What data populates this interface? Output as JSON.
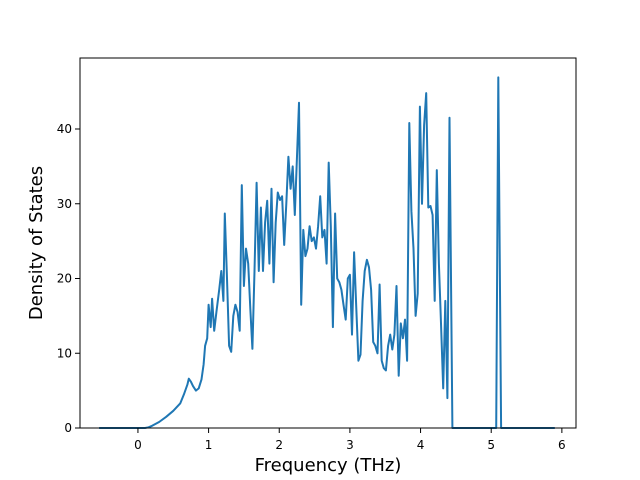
{
  "chart_data": {
    "type": "line",
    "title": "",
    "xlabel": "Frequency (THz)",
    "ylabel": "Density of States",
    "xlim": [
      -0.82,
      6.2
    ],
    "ylim": [
      0,
      49.5
    ],
    "xticks": [
      0,
      1,
      2,
      3,
      4,
      5,
      6
    ],
    "yticks": [
      0,
      10,
      20,
      30,
      40
    ],
    "grid": false,
    "legend": "none",
    "series": [
      {
        "color": "#1f77b4",
        "points": [
          [
            -0.55,
            0
          ],
          [
            -0.3,
            0
          ],
          [
            0.0,
            0
          ],
          [
            0.1,
            0
          ],
          [
            0.15,
            0.1
          ],
          [
            0.2,
            0.3
          ],
          [
            0.3,
            0.8
          ],
          [
            0.4,
            1.5
          ],
          [
            0.5,
            2.3
          ],
          [
            0.6,
            3.3
          ],
          [
            0.65,
            4.5
          ],
          [
            0.7,
            5.8
          ],
          [
            0.72,
            6.6
          ],
          [
            0.75,
            6.2
          ],
          [
            0.78,
            5.6
          ],
          [
            0.82,
            5.0
          ],
          [
            0.86,
            5.3
          ],
          [
            0.9,
            6.5
          ],
          [
            0.93,
            8.5
          ],
          [
            0.95,
            11.0
          ],
          [
            0.98,
            12.0
          ],
          [
            1.0,
            16.5
          ],
          [
            1.03,
            13.5
          ],
          [
            1.05,
            17.3
          ],
          [
            1.08,
            13.0
          ],
          [
            1.11,
            15.5
          ],
          [
            1.15,
            18.5
          ],
          [
            1.18,
            21.0
          ],
          [
            1.21,
            17.0
          ],
          [
            1.23,
            28.7
          ],
          [
            1.26,
            20.0
          ],
          [
            1.29,
            11.0
          ],
          [
            1.32,
            10.2
          ],
          [
            1.35,
            15.0
          ],
          [
            1.38,
            16.5
          ],
          [
            1.41,
            15.5
          ],
          [
            1.44,
            13.0
          ],
          [
            1.47,
            32.5
          ],
          [
            1.5,
            19.0
          ],
          [
            1.53,
            24.0
          ],
          [
            1.56,
            22.0
          ],
          [
            1.59,
            16.0
          ],
          [
            1.62,
            10.6
          ],
          [
            1.65,
            21.0
          ],
          [
            1.68,
            32.8
          ],
          [
            1.71,
            21.0
          ],
          [
            1.74,
            29.5
          ],
          [
            1.77,
            21.0
          ],
          [
            1.8,
            27.5
          ],
          [
            1.83,
            30.4
          ],
          [
            1.86,
            22.0
          ],
          [
            1.89,
            32.0
          ],
          [
            1.92,
            19.5
          ],
          [
            1.95,
            27.5
          ],
          [
            1.98,
            31.5
          ],
          [
            2.01,
            30.5
          ],
          [
            2.04,
            31.0
          ],
          [
            2.07,
            24.5
          ],
          [
            2.1,
            30.0
          ],
          [
            2.13,
            36.3
          ],
          [
            2.16,
            32.0
          ],
          [
            2.19,
            35.0
          ],
          [
            2.22,
            28.5
          ],
          [
            2.25,
            36.0
          ],
          [
            2.28,
            43.5
          ],
          [
            2.31,
            16.5
          ],
          [
            2.34,
            26.5
          ],
          [
            2.37,
            23.0
          ],
          [
            2.4,
            24.0
          ],
          [
            2.43,
            27.0
          ],
          [
            2.46,
            25.0
          ],
          [
            2.49,
            25.5
          ],
          [
            2.52,
            24.0
          ],
          [
            2.55,
            27.0
          ],
          [
            2.58,
            31.0
          ],
          [
            2.61,
            25.5
          ],
          [
            2.64,
            26.5
          ],
          [
            2.67,
            22.0
          ],
          [
            2.7,
            35.5
          ],
          [
            2.73,
            27.0
          ],
          [
            2.76,
            13.5
          ],
          [
            2.79,
            28.7
          ],
          [
            2.82,
            20.0
          ],
          [
            2.85,
            19.5
          ],
          [
            2.88,
            18.5
          ],
          [
            2.91,
            16.5
          ],
          [
            2.94,
            14.5
          ],
          [
            2.97,
            20.0
          ],
          [
            3.0,
            20.5
          ],
          [
            3.03,
            12.5
          ],
          [
            3.06,
            23.5
          ],
          [
            3.09,
            16.0
          ],
          [
            3.12,
            9.0
          ],
          [
            3.15,
            9.8
          ],
          [
            3.18,
            17.0
          ],
          [
            3.21,
            21.0
          ],
          [
            3.24,
            22.5
          ],
          [
            3.27,
            21.5
          ],
          [
            3.3,
            18.5
          ],
          [
            3.33,
            11.5
          ],
          [
            3.36,
            11.0
          ],
          [
            3.39,
            10.0
          ],
          [
            3.42,
            19.2
          ],
          [
            3.45,
            9.0
          ],
          [
            3.48,
            8.0
          ],
          [
            3.51,
            7.7
          ],
          [
            3.54,
            11.0
          ],
          [
            3.57,
            12.5
          ],
          [
            3.6,
            10.5
          ],
          [
            3.63,
            12.5
          ],
          [
            3.66,
            19.0
          ],
          [
            3.69,
            7.0
          ],
          [
            3.72,
            14.0
          ],
          [
            3.75,
            12.0
          ],
          [
            3.78,
            14.5
          ],
          [
            3.81,
            9.0
          ],
          [
            3.84,
            40.8
          ],
          [
            3.87,
            29.0
          ],
          [
            3.9,
            24.0
          ],
          [
            3.93,
            15.0
          ],
          [
            3.96,
            18.0
          ],
          [
            3.99,
            43.0
          ],
          [
            4.02,
            30.0
          ],
          [
            4.05,
            40.5
          ],
          [
            4.08,
            44.8
          ],
          [
            4.11,
            29.5
          ],
          [
            4.14,
            29.7
          ],
          [
            4.17,
            28.5
          ],
          [
            4.2,
            17.0
          ],
          [
            4.23,
            34.5
          ],
          [
            4.26,
            22.0
          ],
          [
            4.29,
            14.0
          ],
          [
            4.32,
            5.3
          ],
          [
            4.35,
            17.0
          ],
          [
            4.38,
            4.0
          ],
          [
            4.41,
            41.5
          ],
          [
            4.45,
            0
          ],
          [
            4.5,
            0
          ],
          [
            5.0,
            0
          ],
          [
            5.07,
            0
          ],
          [
            5.1,
            46.9
          ],
          [
            5.14,
            0
          ],
          [
            5.5,
            0
          ],
          [
            5.9,
            0
          ]
        ]
      }
    ]
  }
}
